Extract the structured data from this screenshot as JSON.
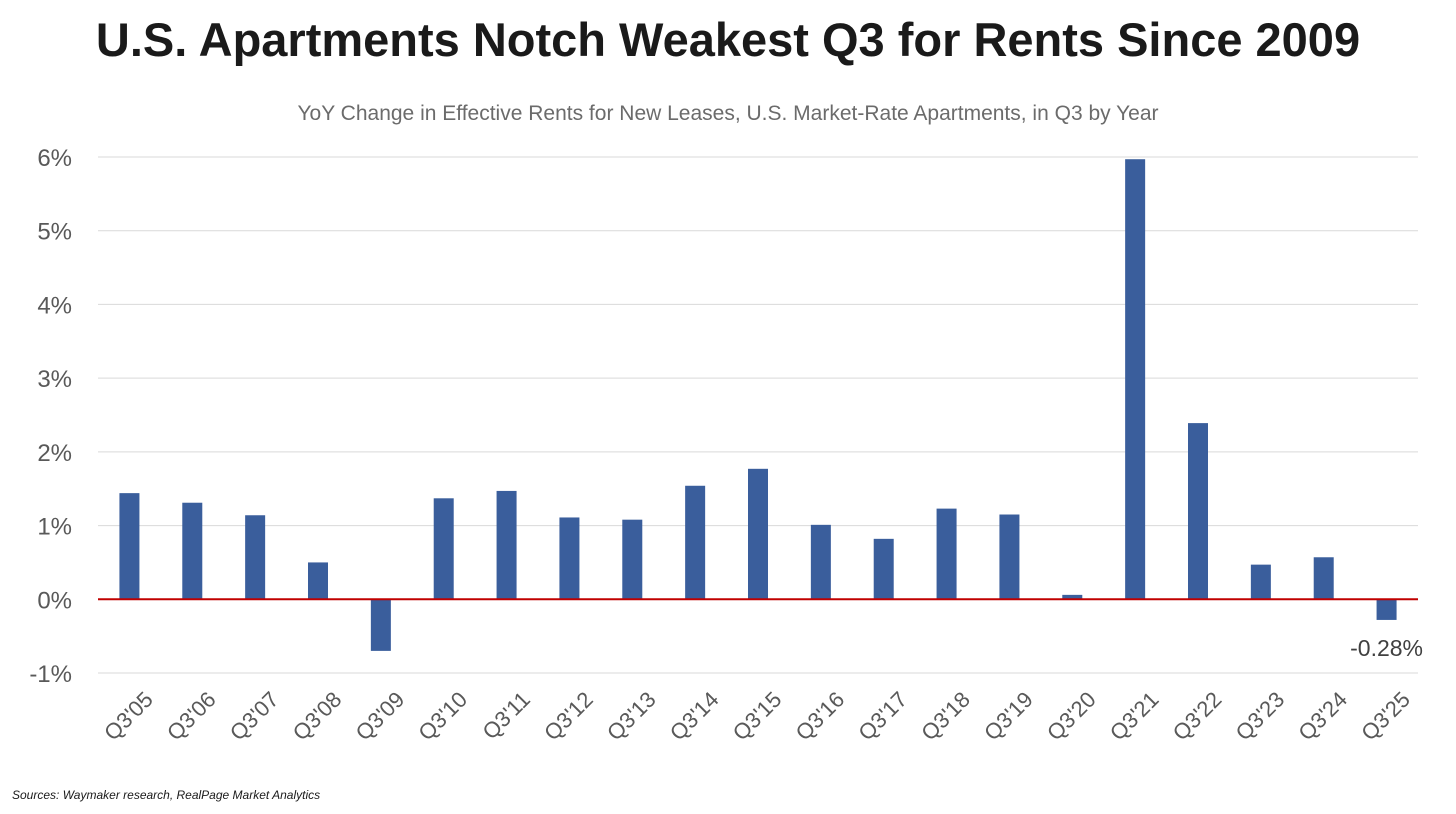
{
  "title": "U.S. Apartments Notch Weakest Q3 for Rents Since 2009",
  "subtitle": "YoY Change in Effective Rents for New Leases, U.S. Market-Rate Apartments, in Q3 by Year",
  "source": "Sources: Waymaker research, RealPage Market Analytics",
  "colors": {
    "bar": "#3A5E9C",
    "zero_line": "#C00000",
    "grid": "#D9D9D9"
  },
  "chart_data": {
    "type": "bar",
    "title": "U.S. Apartments Notch Weakest Q3 for Rents Since 2009",
    "subtitle": "YoY Change in Effective Rents for New Leases, U.S. Market-Rate Apartments, in Q3 by Year",
    "xlabel": "",
    "ylabel": "",
    "categories": [
      "Q3'05",
      "Q3'06",
      "Q3'07",
      "Q3'08",
      "Q3'09",
      "Q3'10",
      "Q3'11",
      "Q3'12",
      "Q3'13",
      "Q3'14",
      "Q3'15",
      "Q3'16",
      "Q3'17",
      "Q3'18",
      "Q3'19",
      "Q3'20",
      "Q3'21",
      "Q3'22",
      "Q3'23",
      "Q3'24",
      "Q3'25"
    ],
    "values": [
      1.44,
      1.31,
      1.14,
      0.5,
      -0.7,
      1.37,
      1.47,
      1.11,
      1.08,
      1.54,
      1.77,
      1.01,
      0.82,
      1.23,
      1.15,
      0.06,
      5.97,
      2.39,
      0.47,
      0.57,
      -0.28
    ],
    "ylim": [
      -1,
      6
    ],
    "yticks": [
      -1,
      0,
      1,
      2,
      3,
      4,
      5,
      6
    ],
    "ytick_labels": [
      "-1%",
      "0%",
      "1%",
      "2%",
      "3%",
      "4%",
      "5%",
      "6%"
    ],
    "grid": true,
    "legend": "none",
    "annotations": [
      {
        "category": "Q3'25",
        "text": "-0.28%"
      }
    ]
  }
}
